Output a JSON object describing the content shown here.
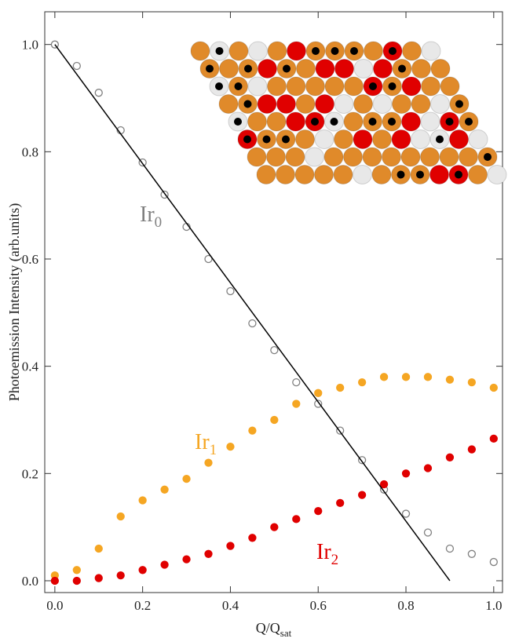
{
  "chart_data": {
    "type": "scatter",
    "xlabel": {
      "text": "Q/Q",
      "sub": "sat"
    },
    "ylabel": "Photoemission Intensity (arb.units)",
    "xlim": [
      -0.023,
      1.02
    ],
    "ylim": [
      -0.022,
      1.061
    ],
    "xticks": [
      {
        "value": 0,
        "label": "0.0"
      },
      {
        "value": 0.2,
        "label": "0.2"
      },
      {
        "value": 0.4,
        "label": "0.4"
      },
      {
        "value": 0.6,
        "label": "0.6"
      },
      {
        "value": 0.8,
        "label": "0.8"
      },
      {
        "value": 1,
        "label": "1.0"
      }
    ],
    "yticks": [
      {
        "value": 0,
        "label": "0.0"
      },
      {
        "value": 0.2,
        "label": "0.2"
      },
      {
        "value": 0.4,
        "label": "0.4"
      },
      {
        "value": 0.6,
        "label": "0.6"
      },
      {
        "value": 0.8,
        "label": "0.8"
      },
      {
        "value": 1,
        "label": "1.0"
      }
    ],
    "series": [
      {
        "label": {
          "text": "Ir",
          "sub": "0"
        },
        "color": "#808080",
        "marker": "open",
        "x": [
          0,
          0.05,
          0.1,
          0.15,
          0.2,
          0.25,
          0.3,
          0.35,
          0.4,
          0.45,
          0.5,
          0.55,
          0.6,
          0.65,
          0.7,
          0.75,
          0.8,
          0.85,
          0.9,
          0.95,
          1.0
        ],
        "values": [
          1.0,
          0.96,
          0.91,
          0.84,
          0.78,
          0.72,
          0.66,
          0.6,
          0.54,
          0.48,
          0.43,
          0.37,
          0.33,
          0.28,
          0.225,
          0.17,
          0.125,
          0.09,
          0.06,
          0.05,
          0.035
        ]
      },
      {
        "label": {
          "text": "Ir",
          "sub": "1"
        },
        "color": "#f5a623",
        "marker": "filled",
        "x": [
          0,
          0.05,
          0.1,
          0.15,
          0.2,
          0.25,
          0.3,
          0.35,
          0.4,
          0.45,
          0.5,
          0.55,
          0.6,
          0.65,
          0.7,
          0.75,
          0.8,
          0.85,
          0.9,
          0.95,
          1.0
        ],
        "values": [
          0.01,
          0.02,
          0.06,
          0.12,
          0.15,
          0.17,
          0.19,
          0.22,
          0.25,
          0.28,
          0.3,
          0.33,
          0.35,
          0.36,
          0.37,
          0.38,
          0.38,
          0.38,
          0.375,
          0.37,
          0.36
        ]
      },
      {
        "label": {
          "text": "Ir",
          "sub": "2"
        },
        "color": "#e00000",
        "marker": "filled",
        "x": [
          0,
          0.05,
          0.1,
          0.15,
          0.2,
          0.25,
          0.3,
          0.35,
          0.4,
          0.45,
          0.5,
          0.55,
          0.6,
          0.65,
          0.7,
          0.75,
          0.8,
          0.85,
          0.9,
          0.95,
          1.0
        ],
        "values": [
          0.0,
          0.0,
          0.005,
          0.01,
          0.02,
          0.03,
          0.04,
          0.05,
          0.065,
          0.08,
          0.1,
          0.115,
          0.13,
          0.145,
          0.16,
          0.18,
          0.2,
          0.21,
          0.23,
          0.245,
          0.265
        ]
      },
      {
        "type": "line",
        "color": "#000000",
        "x": [
          0,
          0.9
        ],
        "values": [
          1.0,
          0.0
        ]
      }
    ]
  }
}
